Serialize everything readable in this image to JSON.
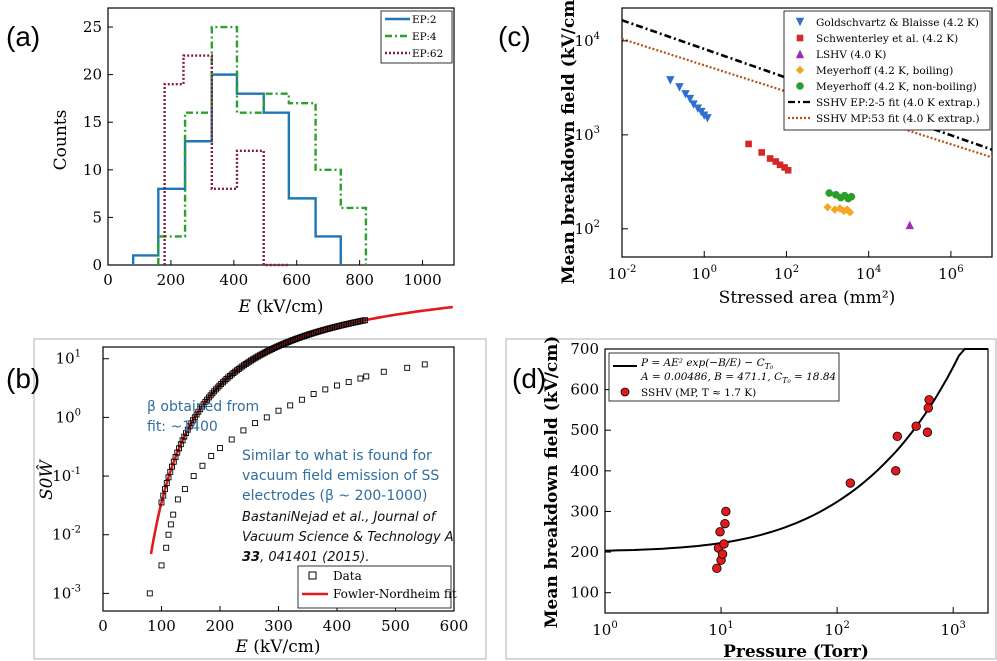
{
  "labels": {
    "a": "(a)",
    "b": "(b)",
    "c": "(c)",
    "d": "(d)"
  },
  "chart_data": [
    {
      "panel": "(a)",
      "type": "histogram",
      "xlabel": "E (kV/cm)",
      "ylabel": "Counts",
      "xlim": [
        0,
        1100
      ],
      "ylim": [
        0,
        27
      ],
      "xticks": [
        "0",
        "200",
        "400",
        "600",
        "800",
        "1000"
      ],
      "yticks": [
        "0",
        "5",
        "10",
        "15",
        "20",
        "25"
      ],
      "legend": [
        "EP:2",
        "EP:4",
        "EP:62"
      ],
      "series": [
        {
          "name": "EP:2",
          "color": "#1f77b4",
          "style": "solid",
          "edges": [
            80,
            160,
            245,
            330,
            410,
            495,
            575,
            660,
            740
          ],
          "counts": [
            1,
            8,
            13,
            20,
            18,
            16,
            7,
            3
          ]
        },
        {
          "name": "EP:4",
          "color": "#2ca02c",
          "style": "dashdot",
          "edges": [
            160,
            245,
            330,
            410,
            495,
            575,
            660,
            740,
            820
          ],
          "counts": [
            3,
            16,
            25,
            16,
            18,
            17,
            10,
            6
          ]
        },
        {
          "name": "EP:62",
          "color": "#8b1a3a",
          "style": "dotted",
          "edges": [
            180,
            240,
            330,
            410,
            495,
            575
          ],
          "counts": [
            19,
            22,
            8,
            12,
            0
          ]
        }
      ]
    },
    {
      "panel": "(b)",
      "type": "scatter",
      "xlabel": "E (kV/cm)",
      "ylabel": "S0Ŵ",
      "xlim": [
        0,
        600
      ],
      "ylim_log10": [
        -3.3,
        1.2
      ],
      "xticks": [
        "0",
        "100",
        "200",
        "300",
        "400",
        "500",
        "600"
      ],
      "yticks": [
        "10",
        "10",
        "10",
        "10",
        "10"
      ],
      "ytick_exps": [
        "-3",
        "-2",
        "-1",
        "0",
        "1"
      ],
      "legend": [
        "Data",
        "Fowler-Nordheim fit"
      ],
      "annotations": {
        "beta1": "β obtained from",
        "beta2": "fit: ~1400",
        "sim1": "Similar to what is found for",
        "sim2": "vacuum field emission of SS",
        "sim3": "electrodes (β ~ 200-1000)",
        "ref1": "BastaniNejad et al., Journal of",
        "ref2": "Vacuum Science & Technology A",
        "ref3a": "33",
        "ref3b": ", 041401 (2015)."
      },
      "data_x": [
        80,
        100,
        108,
        112,
        116,
        120,
        128,
        140,
        155,
        170,
        185,
        200,
        220,
        240,
        260,
        280,
        300,
        320,
        340,
        360,
        380,
        400,
        420,
        440,
        450,
        480,
        520,
        550
      ],
      "data_y": [
        0.001,
        0.003,
        0.006,
        0.01,
        0.015,
        0.022,
        0.04,
        0.06,
        0.1,
        0.15,
        0.22,
        0.3,
        0.42,
        0.6,
        0.8,
        1.0,
        1.3,
        1.6,
        2.0,
        2.5,
        3.0,
        3.5,
        4.0,
        4.6,
        5.0,
        6.0,
        7.0,
        8.0
      ],
      "fit": {
        "type": "fowler-nordheim",
        "color": "#e31a1c"
      }
    },
    {
      "panel": "(c)",
      "type": "scatter",
      "xlabel": "Stressed area (mm²)",
      "ylabel": "Mean breakdown field (kV/cm)",
      "xlim_log10": [
        -2,
        7
      ],
      "ylim_log10": [
        1.7,
        4.35
      ],
      "xtick_exps": [
        "-2",
        "0",
        "2",
        "4",
        "6"
      ],
      "ytick_exps": [
        "2",
        "3",
        "4"
      ],
      "xticks": [
        "10",
        "10",
        "10",
        "10",
        "10"
      ],
      "yticks": [
        "10",
        "10",
        "10"
      ],
      "legend": [
        "Goldschvartz & Blaisse (4.2 K)",
        "Schwenterley et al. (4.2 K)",
        "LSHV (4.0 K)",
        "Meyerhoff (4.2 K, boiling)",
        "Meyerhoff (4.2 K, non-boiling)",
        "SSHV EP:2-5 fit (4.0 K extrap.)",
        "SSHV MP:53 fit (4.0 K extrap.)"
      ],
      "series": [
        {
          "name": "Goldschvartz & Blaisse (4.2 K)",
          "marker": "triangle-down",
          "color": "#2e6fd0",
          "x": [
            0.15,
            0.25,
            0.35,
            0.45,
            0.55,
            0.7,
            0.85,
            1.0,
            1.2
          ],
          "y": [
            3800,
            3200,
            2700,
            2400,
            2100,
            1900,
            1750,
            1600,
            1500
          ]
        },
        {
          "name": "Schwenterley et al. (4.2 K)",
          "marker": "square",
          "color": "#d62728",
          "x": [
            12,
            25,
            40,
            55,
            70,
            90,
            110
          ],
          "y": [
            800,
            650,
            560,
            520,
            480,
            450,
            420
          ]
        },
        {
          "name": "LSHV (4.0 K)",
          "marker": "triangle-up",
          "color": "#9b2fb8",
          "x": [
            100000
          ],
          "y": [
            110
          ]
        },
        {
          "name": "Meyerhoff (4.2 K, boiling)",
          "marker": "diamond",
          "color": "#f5a623",
          "x": [
            1000,
            1500,
            2000,
            2500,
            3000,
            3500
          ],
          "y": [
            170,
            160,
            165,
            155,
            160,
            150
          ]
        },
        {
          "name": "Meyerhoff (4.2 K, non-boiling)",
          "marker": "circle",
          "color": "#2a9d2a",
          "x": [
            1100,
            1600,
            2100,
            2600,
            3200,
            3800
          ],
          "y": [
            240,
            230,
            215,
            225,
            210,
            220
          ]
        }
      ],
      "fits": [
        {
          "name": "SSHV EP:2-5 fit (4.0 K extrap.)",
          "style": "dashdot",
          "color": "#000000",
          "A": 8200,
          "k": 0.153
        },
        {
          "name": "SSHV MP:53 fit (4.0 K extrap.)",
          "style": "dotted",
          "color": "#b5521b",
          "A": 5500,
          "k": 0.14
        }
      ]
    },
    {
      "panel": "(d)",
      "type": "scatter",
      "xlabel": "Pressure (Torr)",
      "ylabel": "Mean breakdown field (kV/cm)",
      "xlim_log10": [
        0,
        3.3
      ],
      "ylim": [
        50,
        700
      ],
      "xticks": [
        "10",
        "10",
        "10",
        "10"
      ],
      "xtick_exps": [
        "0",
        "1",
        "2",
        "3"
      ],
      "yticks": [
        "100",
        "200",
        "300",
        "400",
        "500",
        "600",
        "700"
      ],
      "legend_eq1": "P = AE² exp(−B/E) − C",
      "legend_eq1_sub": "T₀",
      "legend_eq2": "A = 0.00486, B = 471.1, C",
      "legend_eq2_sub": "T₀",
      "legend_eq2_end": " = 18.84",
      "legend_pts": "SSHV (MP, T ≈ 1.7 K)",
      "points_x": [
        9.2,
        9.5,
        9.8,
        10.0,
        10.3,
        10.6,
        10.8,
        11.0,
        130,
        320,
        330,
        480,
        600,
        610,
        620
      ],
      "points_y": [
        160,
        210,
        250,
        180,
        195,
        220,
        270,
        300,
        370,
        400,
        485,
        510,
        495,
        555,
        575
      ],
      "fit": {
        "A": 0.00486,
        "B": 471.1,
        "C": 18.84,
        "color": "#000000"
      }
    }
  ]
}
